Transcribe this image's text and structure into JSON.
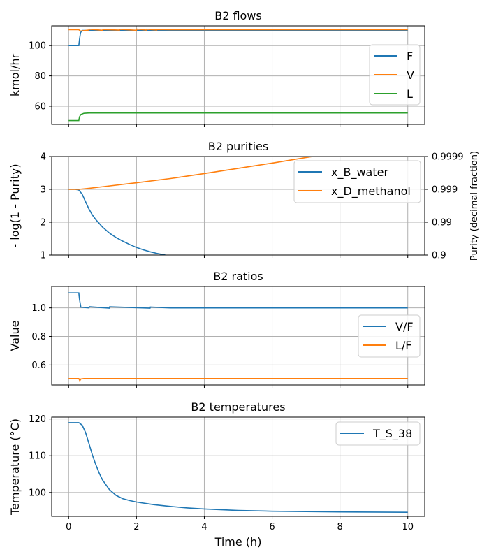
{
  "chart_data": [
    {
      "type": "line",
      "title": "B2 flows",
      "ylabel": "kmol/hr",
      "xlabel": "",
      "xlim": [
        -0.5,
        10.5
      ],
      "ylim": [
        48,
        113
      ],
      "xticks": [
        0,
        2,
        4,
        6,
        8,
        10
      ],
      "yticks": [
        60,
        80,
        100
      ],
      "show_xtick_labels": false,
      "grid": true,
      "legend": "right",
      "series": [
        {
          "name": "F",
          "color": "#1f77b4",
          "x": [
            0,
            0.3,
            0.32,
            0.35,
            0.4,
            10
          ],
          "y": [
            100,
            100,
            104,
            108.5,
            110,
            110
          ]
        },
        {
          "name": "V",
          "color": "#ff7f0e",
          "x": [
            0,
            0.3,
            0.32,
            0.35,
            0.6,
            0.61,
            1,
            1.01,
            1.5,
            1.51,
            2.0,
            2.01,
            2.3,
            2.31,
            2.6,
            2.61,
            3,
            10
          ],
          "y": [
            110.5,
            110.5,
            110,
            109.6,
            110.3,
            110.8,
            110.1,
            110.6,
            110.2,
            110.7,
            110.1,
            110.9,
            110.2,
            110.8,
            110.3,
            110.6,
            110.5,
            110.5
          ]
        },
        {
          "name": "L",
          "color": "#2ca02c",
          "x": [
            0,
            0.3,
            0.32,
            0.36,
            0.45,
            0.6,
            10
          ],
          "y": [
            50.5,
            50.5,
            53,
            54.5,
            55.3,
            55.5,
            55.5
          ]
        }
      ]
    },
    {
      "type": "line",
      "title": "B2 purities",
      "ylabel": "- log(1 - Purity)",
      "ylabel_right": "Purity (decimal fraction)",
      "xlabel": "",
      "xlim": [
        -0.5,
        10.5
      ],
      "ylim": [
        1,
        4
      ],
      "xticks": [
        0,
        2,
        4,
        6,
        8,
        10
      ],
      "yticks": [
        1,
        2,
        3,
        4
      ],
      "yticks_right": [
        "0.9",
        "0.99",
        "0.999",
        "0.9999"
      ],
      "show_xtick_labels": false,
      "grid": true,
      "legend": "top-right",
      "series": [
        {
          "name": "x_B_water",
          "color": "#1f77b4",
          "x": [
            0,
            0.2,
            0.3,
            0.4,
            0.5,
            0.6,
            0.7,
            0.8,
            1.0,
            1.2,
            1.4,
            1.6,
            1.8,
            2.0,
            2.2,
            2.4,
            2.6,
            2.8,
            2.85
          ],
          "y": [
            3.0,
            3.0,
            2.98,
            2.85,
            2.62,
            2.4,
            2.22,
            2.08,
            1.85,
            1.67,
            1.53,
            1.42,
            1.32,
            1.23,
            1.16,
            1.1,
            1.05,
            1.01,
            1.0
          ]
        },
        {
          "name": "x_D_methanol",
          "color": "#ff7f0e",
          "x": [
            0,
            0.3,
            0.5,
            1,
            2,
            3,
            4,
            5,
            6,
            7,
            7.2
          ],
          "y": [
            3.0,
            3.0,
            3.02,
            3.08,
            3.2,
            3.33,
            3.48,
            3.64,
            3.8,
            3.97,
            4.0
          ]
        }
      ]
    },
    {
      "type": "line",
      "title": "B2 ratios",
      "ylabel": "Value",
      "xlabel": "",
      "xlim": [
        -0.5,
        10.5
      ],
      "ylim": [
        0.46,
        1.15
      ],
      "xticks": [
        0,
        2,
        4,
        6,
        8,
        10
      ],
      "yticks": [
        0.6,
        0.8,
        1.0
      ],
      "ytick_labels": [
        "0.6",
        "0.8",
        "1.0"
      ],
      "show_xtick_labels": false,
      "grid": true,
      "legend": "right",
      "series": [
        {
          "name": "V/F",
          "color": "#1f77b4",
          "x": [
            0,
            0.3,
            0.32,
            0.36,
            0.6,
            0.61,
            1.2,
            1.21,
            2.4,
            2.41,
            3,
            10
          ],
          "y": [
            1.105,
            1.105,
            1.06,
            1.005,
            1.0,
            1.008,
            0.998,
            1.008,
            0.998,
            1.006,
            1.0,
            1.0
          ]
        },
        {
          "name": "L/F",
          "color": "#ff7f0e",
          "x": [
            0,
            0.3,
            0.33,
            0.36,
            0.45,
            10
          ],
          "y": [
            0.505,
            0.505,
            0.49,
            0.502,
            0.505,
            0.505
          ]
        }
      ]
    },
    {
      "type": "line",
      "title": "B2 temperatures",
      "ylabel": "Temperature (°C)",
      "xlabel": "Time (h)",
      "xlim": [
        -0.5,
        10.5
      ],
      "ylim": [
        93.5,
        120.5
      ],
      "xticks": [
        0,
        2,
        4,
        6,
        8,
        10
      ],
      "yticks": [
        100,
        110,
        120
      ],
      "show_xtick_labels": true,
      "grid": true,
      "legend": "top-right",
      "series": [
        {
          "name": "T_S_38",
          "color": "#1f77b4",
          "x": [
            0,
            0.3,
            0.4,
            0.5,
            0.6,
            0.7,
            0.8,
            0.9,
            1.0,
            1.2,
            1.4,
            1.6,
            1.8,
            2.0,
            2.5,
            3.0,
            3.5,
            4.0,
            5.0,
            6.0,
            7.0,
            8.0,
            9.0,
            10.0
          ],
          "y": [
            119,
            119,
            118.3,
            116.3,
            113.3,
            110.2,
            107.6,
            105.3,
            103.4,
            100.8,
            99.2,
            98.3,
            97.8,
            97.4,
            96.7,
            96.2,
            95.8,
            95.5,
            95.1,
            94.9,
            94.8,
            94.7,
            94.65,
            94.6
          ]
        }
      ]
    }
  ]
}
